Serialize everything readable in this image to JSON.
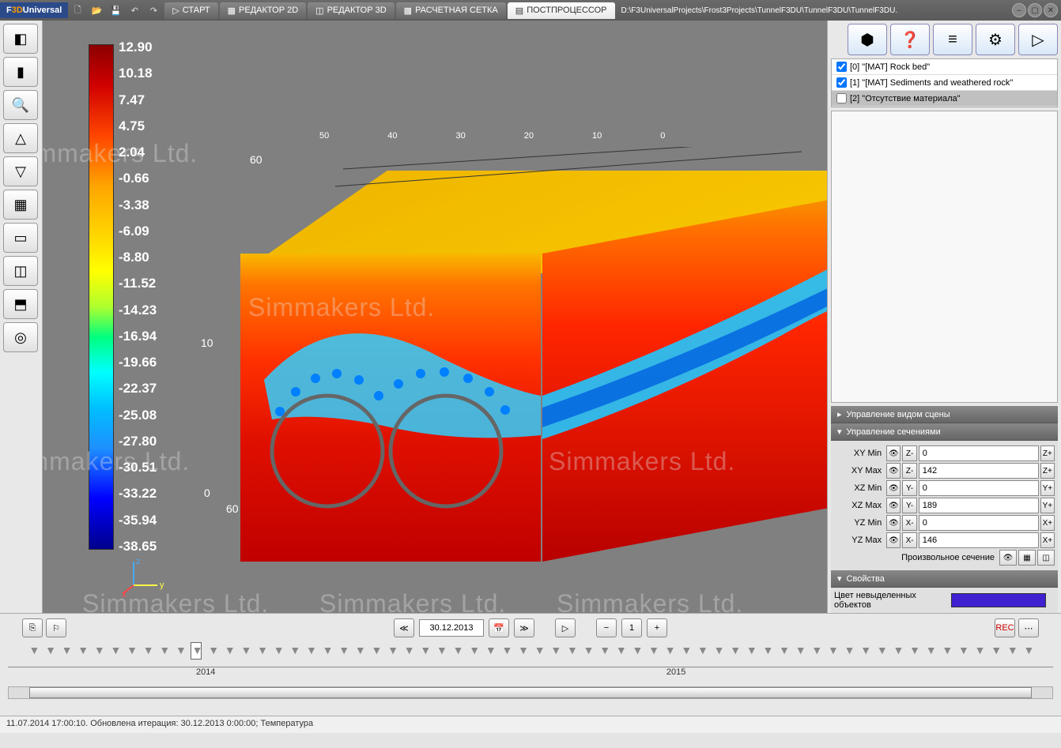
{
  "app": {
    "name_prefix": "F",
    "name_mid": "3D",
    "name_suffix": "Universal"
  },
  "tabs": {
    "start": "СТАРТ",
    "editor2d": "РЕДАКТОР 2D",
    "editor3d": "РЕДАКТОР 3D",
    "mesh": "РАСЧЕТНАЯ СЕТКА",
    "postproc": "ПОСТПРОЦЕССОР"
  },
  "file_path": "D:\\F3UniversalProjects\\Frost3Projects\\TunnelF3DU\\TunnelF3DU\\TunnelF3DU.",
  "colorbar": {
    "values": [
      "12.90",
      "10.18",
      "7.47",
      "4.75",
      "2.04",
      "-0.66",
      "-3.38",
      "-6.09",
      "-8.80",
      "-11.52",
      "-14.23",
      "-16.94",
      "-19.66",
      "-22.37",
      "-25.08",
      "-27.80",
      "-30.51",
      "-33.22",
      "-35.94",
      "-38.65"
    ],
    "gradient_stops": [
      [
        "#8b0000",
        0
      ],
      [
        "#d00000",
        8
      ],
      [
        "#ff4500",
        18
      ],
      [
        "#ffa500",
        28
      ],
      [
        "#ffd700",
        38
      ],
      [
        "#ffff00",
        45
      ],
      [
        "#adff2f",
        52
      ],
      [
        "#00ff7f",
        58
      ],
      [
        "#00ffff",
        65
      ],
      [
        "#00bfff",
        72
      ],
      [
        "#1e90ff",
        80
      ],
      [
        "#0000ff",
        90
      ],
      [
        "#00008b",
        100
      ]
    ]
  },
  "viewport": {
    "background": "#808080",
    "axis_ticks_top": [
      "50",
      "40",
      "30",
      "20",
      "10",
      "0"
    ],
    "axis_left_60": "60",
    "axis_y_10": "10",
    "axis_y_0": "0",
    "axis_bottom_60": "60",
    "gizmo": {
      "x": "x",
      "y": "y",
      "z": "z"
    },
    "watermark_text": "Simmakers Ltd."
  },
  "materials": {
    "items": [
      {
        "id": 0,
        "label": "[0] \"[MAT] Rock bed\"",
        "checked": true
      },
      {
        "id": 1,
        "label": "[1] \"[MAT] Sediments and weathered rock\"",
        "checked": true
      },
      {
        "id": 2,
        "label": "[2] \"Отсутствие материала\"",
        "selected": true
      }
    ]
  },
  "accordion": {
    "scene_view": "Управление видом сцены",
    "sections": "Управление сечениями",
    "properties": "Свойства"
  },
  "sections": {
    "rows": [
      {
        "label": "XY Min",
        "minus": "Z-",
        "value": "0",
        "plus": "Z+"
      },
      {
        "label": "XY Max",
        "minus": "Z-",
        "value": "142",
        "plus": "Z+"
      },
      {
        "label": "XZ Min",
        "minus": "Y-",
        "value": "0",
        "plus": "Y+"
      },
      {
        "label": "XZ Max",
        "minus": "Y-",
        "value": "189",
        "plus": "Y+"
      },
      {
        "label": "YZ Min",
        "minus": "X-",
        "value": "0",
        "plus": "X+"
      },
      {
        "label": "YZ Max",
        "minus": "X-",
        "value": "146",
        "plus": "X+"
      }
    ],
    "arbitrary_label": "Произвольное сечение"
  },
  "properties": {
    "unselected_color_label": "Цвет невыделенных объектов",
    "unselected_color": "#4020d0"
  },
  "timeline": {
    "date": "30.12.2013",
    "step": "1",
    "years": {
      "y2014": "2014",
      "y2015": "2015"
    }
  },
  "statusbar": "11.07.2014 17:00:10. Обновлена итерация: 30.12.2013 0:00:00; Температура"
}
